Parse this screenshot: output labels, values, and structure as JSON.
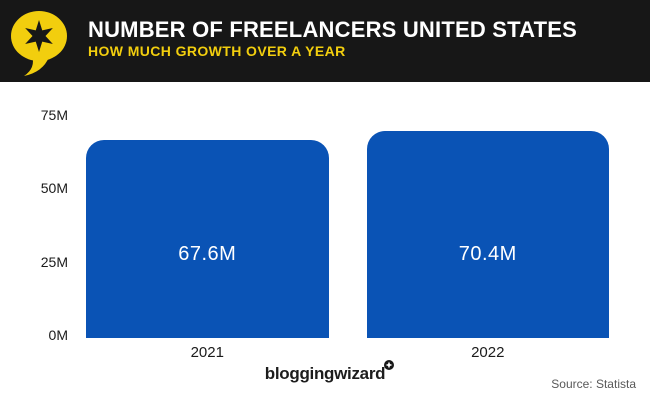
{
  "header": {
    "title": "NUMBER OF FREELANCERS UNITED STATES",
    "subtitle": "HOW MUCH GROWTH OVER A YEAR",
    "logo_icon": "star-speech-bubble-icon",
    "colors": {
      "background": "#171717",
      "title": "#ffffff",
      "accent_yellow": "#f2ce0e"
    }
  },
  "chart_data": {
    "type": "bar",
    "title": "Number of Freelancers United States",
    "subtitle": "How much growth over a year",
    "categories": [
      "2021",
      "2022"
    ],
    "values": [
      67.6,
      70.4
    ],
    "value_labels": [
      "67.6M",
      "70.4M"
    ],
    "unit": "M",
    "xlabel": "",
    "ylabel": "",
    "ylim": [
      0,
      75
    ],
    "yticks": [
      0,
      25,
      50,
      75
    ],
    "ytick_labels": [
      "0M",
      "25M",
      "50M",
      "75M"
    ],
    "grid": false,
    "legend": "none",
    "bar_color": "#0a53b5",
    "value_label_color": "#ffffff",
    "tick_color": "#1b1b1b"
  },
  "footer": {
    "brand": "bloggingwizard",
    "brand_badge_icon": "sparkle-icon",
    "source": "Source: Statista"
  }
}
